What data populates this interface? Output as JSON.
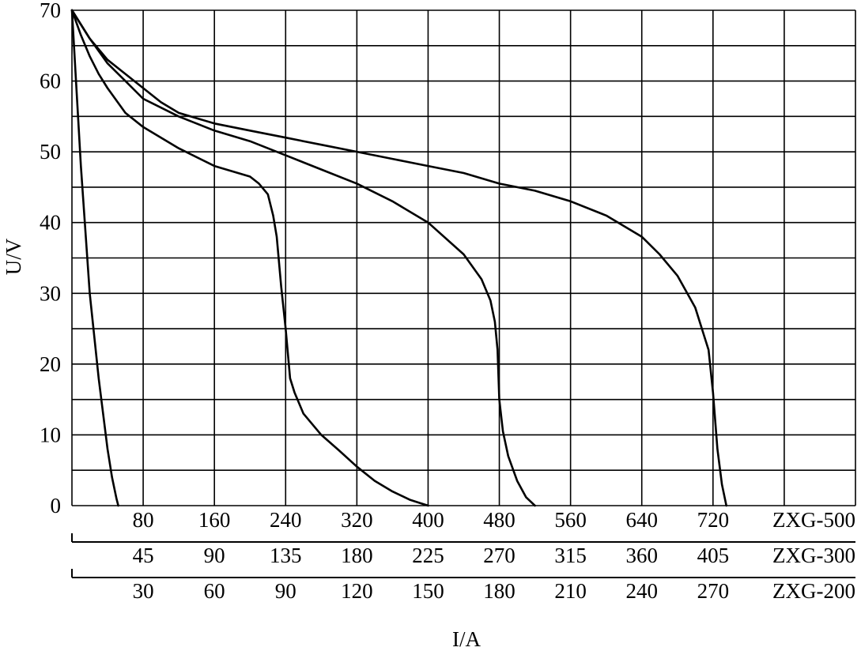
{
  "chart_data": {
    "type": "line",
    "xlabel": "I/A",
    "ylabel": "U/V",
    "ylim": [
      0,
      70
    ],
    "y_ticks": [
      "0",
      "10",
      "20",
      "30",
      "40",
      "50",
      "60",
      "70"
    ],
    "grid": true,
    "x_axes": [
      {
        "name": "ZXG-500",
        "xlim": [
          0,
          880
        ],
        "ticks": [
          80,
          160,
          240,
          320,
          400,
          480,
          560,
          640,
          720
        ]
      },
      {
        "name": "ZXG-300",
        "xlim": [
          0,
          495
        ],
        "ticks": [
          45,
          90,
          135,
          180,
          225,
          270,
          315,
          360,
          405
        ]
      },
      {
        "name": "ZXG-200",
        "xlim": [
          0,
          330
        ],
        "ticks": [
          30,
          60,
          90,
          120,
          150,
          180,
          210,
          240,
          270
        ]
      }
    ],
    "series": [
      {
        "x": [
          0,
          10,
          20,
          30,
          40,
          45,
          50,
          52
        ],
        "y": [
          70,
          48,
          30,
          18,
          8,
          4,
          1,
          0
        ]
      },
      {
        "x": [
          0,
          10,
          20,
          30,
          40,
          60,
          80,
          120,
          160,
          200,
          210,
          220,
          226,
          230,
          235,
          240,
          245,
          250,
          260,
          280,
          300,
          320,
          340,
          360,
          380,
          400
        ],
        "y": [
          70,
          66.5,
          63.5,
          61,
          59,
          55.5,
          53.5,
          50.5,
          48,
          46.5,
          45.5,
          44,
          41,
          38,
          31,
          25,
          18,
          16,
          13,
          10,
          7.8,
          5.5,
          3.5,
          2,
          0.8,
          0
        ]
      },
      {
        "x": [
          0,
          20,
          40,
          60,
          80,
          120,
          160,
          200,
          240,
          280,
          320,
          360,
          400,
          440,
          460,
          470,
          475,
          478,
          480,
          484,
          490,
          500,
          510,
          520
        ],
        "y": [
          70,
          66,
          62.5,
          60,
          57.5,
          55,
          53,
          51.5,
          49.5,
          47.5,
          45.5,
          43,
          40,
          35.5,
          32,
          29,
          26,
          22,
          15,
          10.5,
          7,
          3.5,
          1.2,
          0
        ]
      },
      {
        "x": [
          0,
          20,
          40,
          60,
          80,
          100,
          120,
          160,
          200,
          240,
          280,
          320,
          360,
          400,
          440,
          480,
          520,
          560,
          600,
          640,
          660,
          680,
          700,
          715,
          720,
          725,
          730,
          735
        ],
        "y": [
          70,
          66,
          63,
          61,
          59,
          57,
          55.5,
          54,
          53,
          52,
          51,
          50,
          49,
          48,
          47,
          45.5,
          44.5,
          43,
          41,
          38,
          35.5,
          32.5,
          28,
          22,
          16,
          8,
          3,
          0
        ]
      }
    ]
  }
}
